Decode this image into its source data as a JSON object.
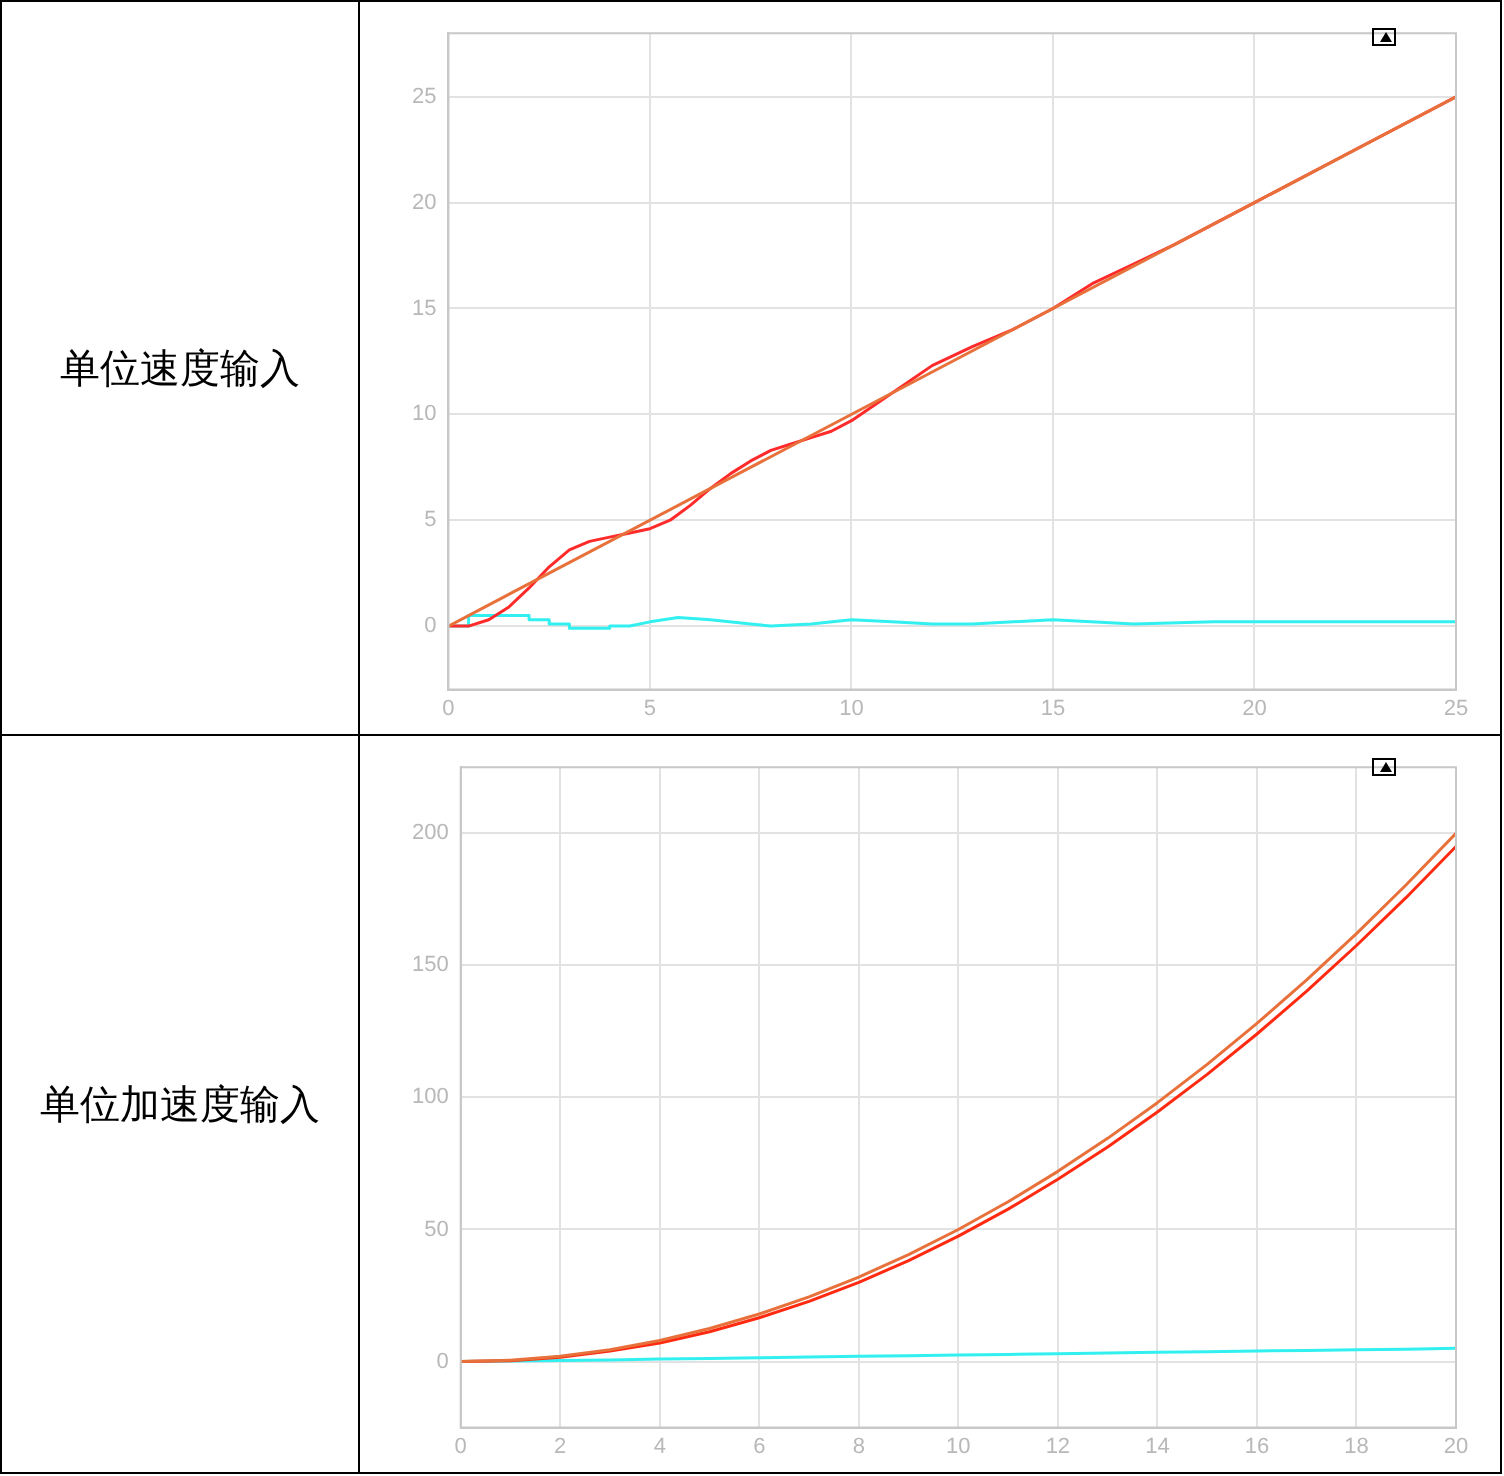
{
  "chart_data": [
    {
      "type": "line",
      "title": "单位速度输入",
      "xlim": [
        0,
        25
      ],
      "xticks": [
        0,
        5,
        10,
        15,
        20,
        25
      ],
      "ylim": [
        -3,
        28
      ],
      "yticks": [
        0,
        5,
        10,
        15,
        20,
        25
      ],
      "grid": true,
      "marker": "none",
      "series": [
        {
          "color": "#e8703a",
          "x": [
            0,
            25
          ],
          "values": [
            0,
            25
          ]
        },
        {
          "color": "#ff2a2a",
          "x": [
            0,
            0.5,
            1,
            1.5,
            2,
            2.5,
            3,
            3.5,
            4,
            4.5,
            5,
            5.5,
            6,
            6.5,
            7,
            7.5,
            8,
            8.5,
            9,
            9.5,
            10,
            11,
            12,
            13,
            14,
            15,
            16,
            17,
            18,
            20,
            22,
            25
          ],
          "values": [
            0,
            0,
            0.3,
            0.9,
            1.8,
            2.8,
            3.6,
            4,
            4.2,
            4.4,
            4.6,
            5,
            5.7,
            6.5,
            7.2,
            7.8,
            8.3,
            8.6,
            8.9,
            9.2,
            9.7,
            11,
            12.3,
            13.2,
            14,
            15,
            16.2,
            17.1,
            18,
            20,
            22,
            25
          ]
        },
        {
          "color": "#33f0f0",
          "x": [
            0,
            0.5,
            0.5,
            2,
            2,
            2.5,
            2.5,
            3,
            3,
            4,
            4,
            4.5,
            5,
            5.7,
            6.5,
            7.5,
            8,
            9,
            10,
            11,
            12,
            13,
            15,
            17,
            19,
            22,
            25
          ],
          "values": [
            0,
            0,
            0.5,
            0.5,
            0.3,
            0.3,
            0.1,
            0.1,
            -0.1,
            -0.1,
            0,
            0,
            0.2,
            0.4,
            0.3,
            0.1,
            0,
            0.1,
            0.3,
            0.2,
            0.1,
            0.1,
            0.3,
            0.1,
            0.2,
            0.2,
            0.2
          ]
        }
      ]
    },
    {
      "type": "line",
      "title": "单位加速度输入",
      "xlim": [
        0,
        20
      ],
      "xticks": [
        0,
        2,
        4,
        6,
        8,
        10,
        12,
        14,
        16,
        18,
        20
      ],
      "ylim": [
        -25,
        225
      ],
      "yticks": [
        0,
        50,
        100,
        150,
        200
      ],
      "grid": true,
      "marker": "none",
      "series": [
        {
          "color": "#e8703a",
          "x": [
            0,
            1,
            2,
            3,
            4,
            5,
            6,
            7,
            8,
            9,
            10,
            11,
            12,
            13,
            14,
            15,
            16,
            17,
            18,
            19,
            20
          ],
          "values": [
            0,
            0.5,
            2,
            4.5,
            8,
            12.5,
            18,
            24.5,
            32,
            40.5,
            50,
            60.5,
            72,
            84.5,
            98,
            112.5,
            128,
            144.5,
            162,
            180.5,
            200
          ]
        },
        {
          "color": "#ff2a10",
          "x": [
            0,
            1,
            2,
            3,
            4,
            5,
            6,
            7,
            8,
            9,
            10,
            11,
            12,
            13,
            14,
            15,
            16,
            17,
            18,
            19,
            20
          ],
          "values": [
            0,
            0.3,
            1.6,
            4,
            7,
            11.3,
            16.6,
            22.8,
            30,
            38.2,
            47.5,
            57.7,
            69,
            81.2,
            94.5,
            108.7,
            124,
            140.2,
            157.5,
            175.7,
            195
          ]
        },
        {
          "color": "#33f0f0",
          "x": [
            0,
            1,
            2,
            3,
            4,
            5,
            6,
            7,
            8,
            9,
            10,
            11,
            12,
            13,
            14,
            15,
            16,
            17,
            18,
            19,
            20
          ],
          "values": [
            0,
            0.2,
            0.4,
            0.6,
            1,
            1.2,
            1.4,
            1.7,
            2,
            2.2,
            2.5,
            2.7,
            3,
            3.2,
            3.5,
            3.7,
            4,
            4.2,
            4.5,
            4.7,
            5
          ]
        }
      ]
    }
  ]
}
